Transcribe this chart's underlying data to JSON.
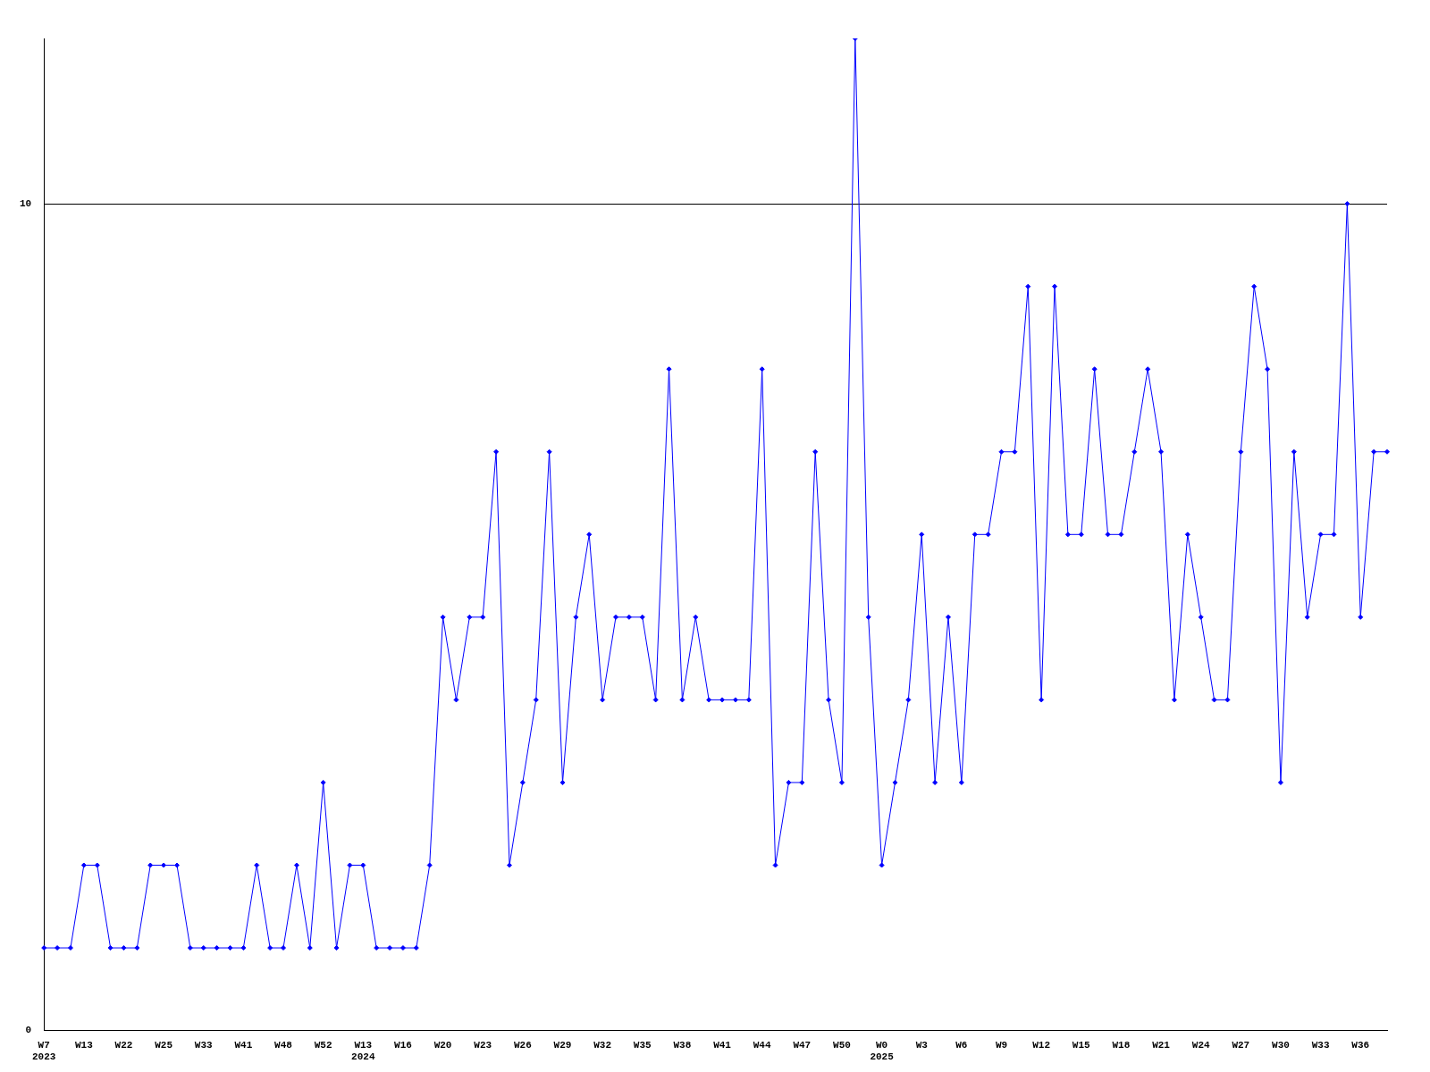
{
  "chart_data": {
    "type": "line",
    "categories": [
      "W7\n2023",
      null,
      null,
      "W13",
      null,
      null,
      "W22",
      null,
      null,
      "W25",
      null,
      null,
      "W33",
      null,
      null,
      "W41",
      null,
      null,
      "W48",
      null,
      null,
      "W52",
      null,
      null,
      "W13\n2024",
      null,
      null,
      "W16",
      null,
      null,
      "W20",
      null,
      null,
      "W23",
      null,
      null,
      "W26",
      null,
      null,
      "W29",
      null,
      null,
      "W32",
      null,
      null,
      "W35",
      null,
      null,
      "W38",
      null,
      null,
      "W41",
      null,
      null,
      "W44",
      null,
      null,
      "W47",
      null,
      null,
      "W50",
      null,
      null,
      "W0\n2025",
      null,
      null,
      "W3",
      null,
      null,
      "W6",
      null,
      null,
      "W9",
      null,
      null,
      "W12",
      null,
      null,
      "W15",
      null,
      null,
      "W18",
      null,
      null,
      "W21",
      null,
      null,
      "W24",
      null,
      null,
      "W27",
      null,
      null,
      "W30",
      null,
      null,
      "W33",
      null,
      null,
      "W36",
      null,
      null
    ],
    "series": [
      {
        "color": "#0000ff",
        "values": [
          1,
          1,
          1,
          2,
          2,
          1,
          1,
          1,
          2,
          2,
          2,
          1,
          1,
          1,
          1,
          1,
          2,
          1,
          1,
          2,
          1,
          3,
          1,
          2,
          2,
          1,
          1,
          1,
          1,
          2,
          5,
          4,
          5,
          5,
          7,
          2,
          3,
          4,
          7,
          3,
          5,
          6,
          4,
          5,
          5,
          5,
          4,
          8,
          4,
          5,
          4,
          4,
          4,
          4,
          8,
          2,
          3,
          3,
          7,
          4,
          3,
          12,
          5,
          2,
          3,
          4,
          6,
          3,
          5,
          3,
          6,
          6,
          7,
          7,
          9,
          4,
          9,
          6,
          6,
          8,
          6,
          6,
          7,
          8,
          7,
          4,
          6,
          5,
          4,
          4,
          7,
          9,
          8,
          3,
          7,
          5,
          6,
          6,
          10,
          5,
          7,
          7
        ]
      }
    ],
    "ylim": [
      0,
      12
    ],
    "yticks": [
      0,
      10
    ],
    "grid": "y",
    "marker": "diamond",
    "line_style": "solid",
    "legend": false
  }
}
